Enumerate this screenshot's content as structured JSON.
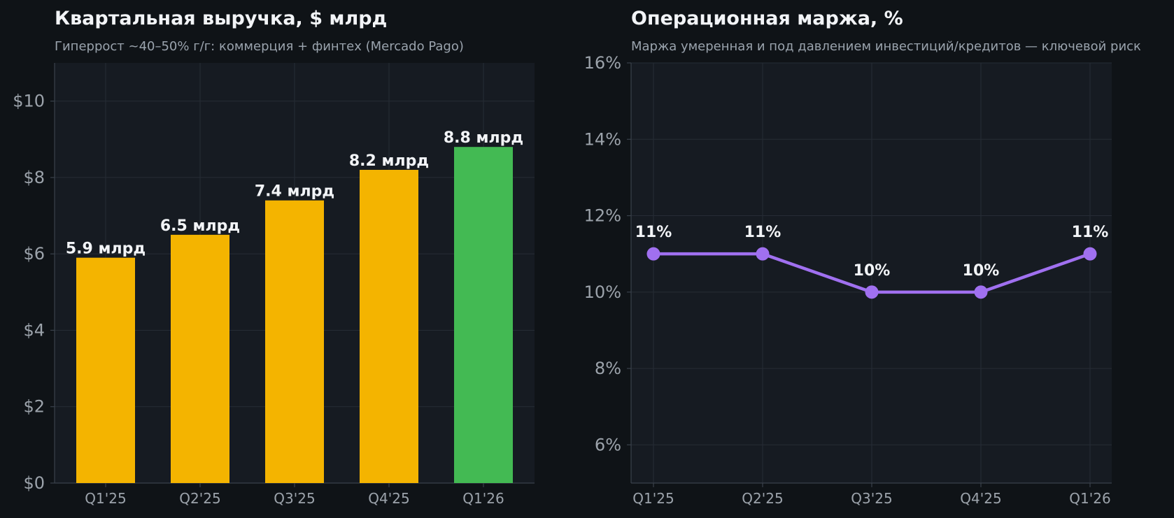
{
  "chart_data": [
    {
      "type": "bar",
      "title": "Квартальная выручка, $ млрд",
      "subtitle": "Гиперрост ~40–50% г/г: коммерция + финтех (Mercado Pago)",
      "categories": [
        "Q1'25",
        "Q2'25",
        "Q3'25",
        "Q4'25",
        "Q1'26"
      ],
      "values": [
        5.9,
        6.5,
        7.4,
        8.2,
        8.8
      ],
      "data_labels": [
        "5.9 млрд",
        "6.5 млрд",
        "7.4 млрд",
        "8.2 млрд",
        "8.8 млрд"
      ],
      "bar_colors": [
        "#f4b400",
        "#f4b400",
        "#f4b400",
        "#f4b400",
        "#43ba53"
      ],
      "ylim": [
        0,
        11
      ],
      "yticks": [
        0,
        2,
        4,
        6,
        8,
        10
      ],
      "ytick_labels": [
        "$0",
        "$2",
        "$4",
        "$6",
        "$8",
        "$10"
      ],
      "grid": true
    },
    {
      "type": "line",
      "title": "Операционная маржа, %",
      "subtitle": "Маржа умеренная и под давлением инвестиций/кредитов — ключевой риск",
      "categories": [
        "Q1'25",
        "Q2'25",
        "Q3'25",
        "Q4'25",
        "Q1'26"
      ],
      "values": [
        11,
        11,
        10,
        10,
        11
      ],
      "data_labels": [
        "11%",
        "11%",
        "10%",
        "10%",
        "11%"
      ],
      "line_color": "#a070f0",
      "ylim": [
        5,
        16
      ],
      "yticks": [
        6,
        8,
        10,
        12,
        14,
        16
      ],
      "ytick_labels": [
        "6%",
        "8%",
        "10%",
        "12%",
        "14%",
        "16%"
      ],
      "grid": true
    }
  ]
}
